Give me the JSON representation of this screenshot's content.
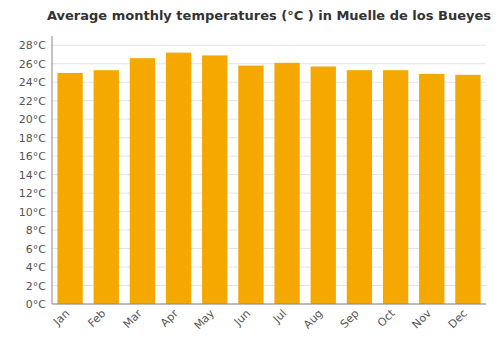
{
  "chart_data": {
    "type": "bar",
    "title": "Average monthly temperatures (°C ) in Muelle de los Bueyes",
    "categories": [
      "Jan",
      "Feb",
      "Mar",
      "Apr",
      "May",
      "Jun",
      "Jul",
      "Aug",
      "Sep",
      "Oct",
      "Nov",
      "Dec"
    ],
    "values": [
      25.0,
      25.3,
      26.6,
      27.2,
      26.9,
      25.8,
      26.1,
      25.7,
      25.3,
      25.3,
      24.9,
      24.8
    ],
    "color": "#F5A800",
    "ylim": [
      0,
      29
    ],
    "yticks": [
      {
        "value": 0,
        "label": "0°C"
      },
      {
        "value": 2,
        "label": "2°C"
      },
      {
        "value": 4,
        "label": "4°C"
      },
      {
        "value": 6,
        "label": "6°C"
      },
      {
        "value": 8,
        "label": "8°C"
      },
      {
        "value": 10,
        "label": "10°C"
      },
      {
        "value": 12,
        "label": "12°C"
      },
      {
        "value": 14,
        "label": "14°C"
      },
      {
        "value": 16,
        "label": "16°C"
      },
      {
        "value": 18,
        "label": "18°C"
      },
      {
        "value": 20,
        "label": "20°C"
      },
      {
        "value": 22,
        "label": "22°C"
      },
      {
        "value": 24,
        "label": "24°C"
      },
      {
        "value": 26,
        "label": "26°C"
      },
      {
        "value": 28,
        "label": "28°C"
      }
    ],
    "grid": true
  }
}
